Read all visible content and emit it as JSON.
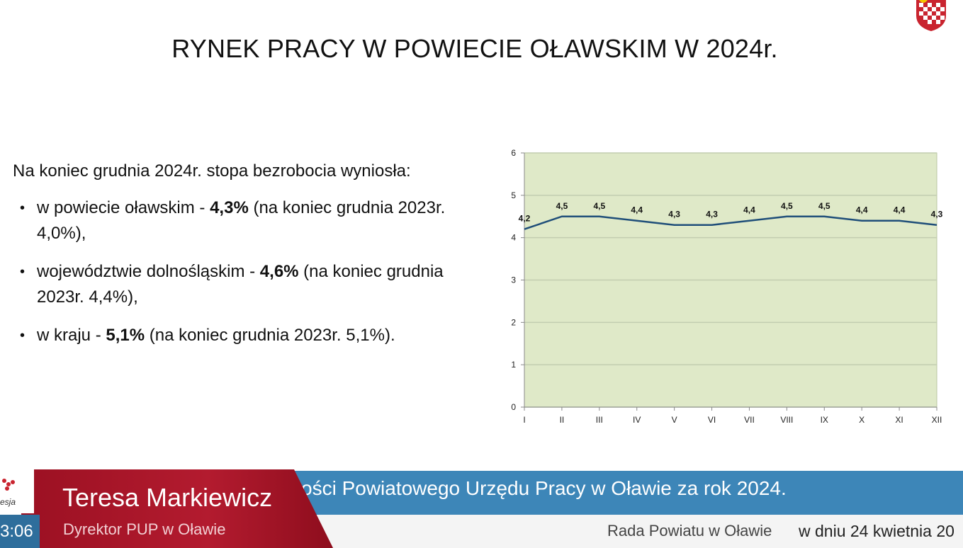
{
  "slide": {
    "title": "RYNEK PRACY W POWIECIE OŁAWSKIM W 2024r.",
    "intro": "Na koniec grudnia 2024r. stopa bezrobocia wyniosła:",
    "bullets": [
      {
        "pre": "w powiecie oławskim  - ",
        "bold": "4,3%",
        "post": "  (na koniec grudnia 2023r. 4,0%),"
      },
      {
        "pre": "województwie dolnośląskim  - ",
        "bold": "4,6%",
        "post": "  (na koniec grudnia 2023r. 4,4%),"
      },
      {
        "pre": "w kraju   - ",
        "bold": "5,1%",
        "post": "  (na koniec grudnia 2023r. 5,1%)."
      }
    ],
    "crest_icon": "coat-of-arms-icon"
  },
  "chart_data": {
    "type": "line",
    "categories": [
      "I",
      "II",
      "III",
      "IV",
      "V",
      "VI",
      "VII",
      "VIII",
      "IX",
      "X",
      "XI",
      "XII"
    ],
    "series": [
      {
        "values": [
          4.2,
          4.5,
          4.5,
          4.4,
          4.3,
          4.3,
          4.4,
          4.5,
          4.5,
          4.4,
          4.4,
          4.3
        ]
      }
    ],
    "data_labels": [
      "4,2",
      "4,5",
      "4,5",
      "4,4",
      "4,3",
      "4,3",
      "4,4",
      "4,5",
      "4,5",
      "4,4",
      "4,4",
      "4,3"
    ],
    "y_ticks": [
      "0",
      "1",
      "2",
      "3",
      "4",
      "5",
      "6"
    ],
    "ylim": [
      0,
      6
    ],
    "grid": true,
    "plot_bg": "#dfe9c8",
    "line_color": "#1f4e79"
  },
  "lower_third": {
    "name": "Teresa Markiewicz",
    "role": "Dyrektor PUP w Oławie",
    "topic": "ości Powiatowego Urzędu Pracy w Oławie za rok 2024.",
    "event": "Rada Powiatu w Oławie",
    "date": "w dniu 24 kwietnia 20",
    "time": "3:06",
    "logo_text": "esja",
    "colors": {
      "red": "#b31b2f",
      "blue": "#3d86b8",
      "dark_blue": "#2e6e9c"
    }
  }
}
